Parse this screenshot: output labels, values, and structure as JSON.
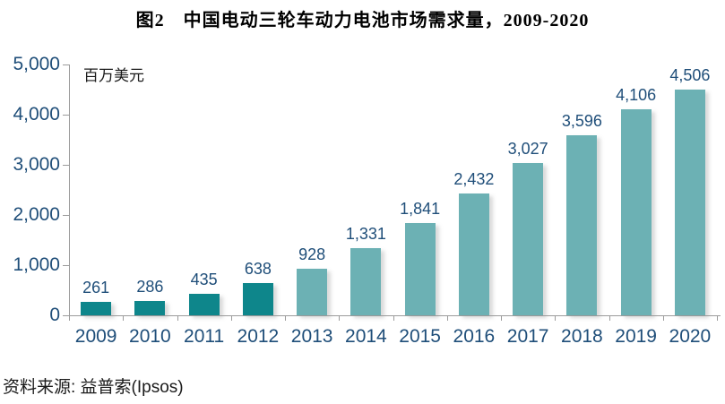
{
  "title": "图2　中国电动三轮车动力电池市场需求量，2009-2020",
  "unit_label": "百万美元",
  "source": "资料来源: 益普索(Ipsos)",
  "colors": {
    "bar_dark_teal": "#0E868B",
    "bar_light_teal": "#6CB1B4",
    "label_blue": "#1F4E79",
    "axis_gray": "#9c9c9c"
  },
  "chart_data": {
    "type": "bar",
    "title": "图2　中国电动三轮车动力电池市场需求量，2009-2020",
    "xlabel": "",
    "ylabel": "百万美元",
    "categories": [
      "2009",
      "2010",
      "2011",
      "2012",
      "2013",
      "2014",
      "2015",
      "2016",
      "2017",
      "2018",
      "2019",
      "2020"
    ],
    "values": [
      261,
      286,
      435,
      638,
      928,
      1331,
      1841,
      2432,
      3027,
      3596,
      4106,
      4506
    ],
    "value_labels": [
      "261",
      "286",
      "435",
      "638",
      "928",
      "1,331",
      "1,841",
      "2,432",
      "3,027",
      "3,596",
      "4,106",
      "4,506"
    ],
    "dark_bar_count": 4,
    "ylim": [
      0,
      5000
    ],
    "yticks": [
      0,
      1000,
      2000,
      3000,
      4000,
      5000
    ],
    "ytick_labels": [
      "0",
      "1,000",
      "2,000",
      "3,000",
      "4,000",
      "5,000"
    ],
    "grid": false,
    "legend": "none",
    "bar_colors_note": "2009-2012 dark teal (historical), 2013-2020 light teal (forecast)"
  }
}
